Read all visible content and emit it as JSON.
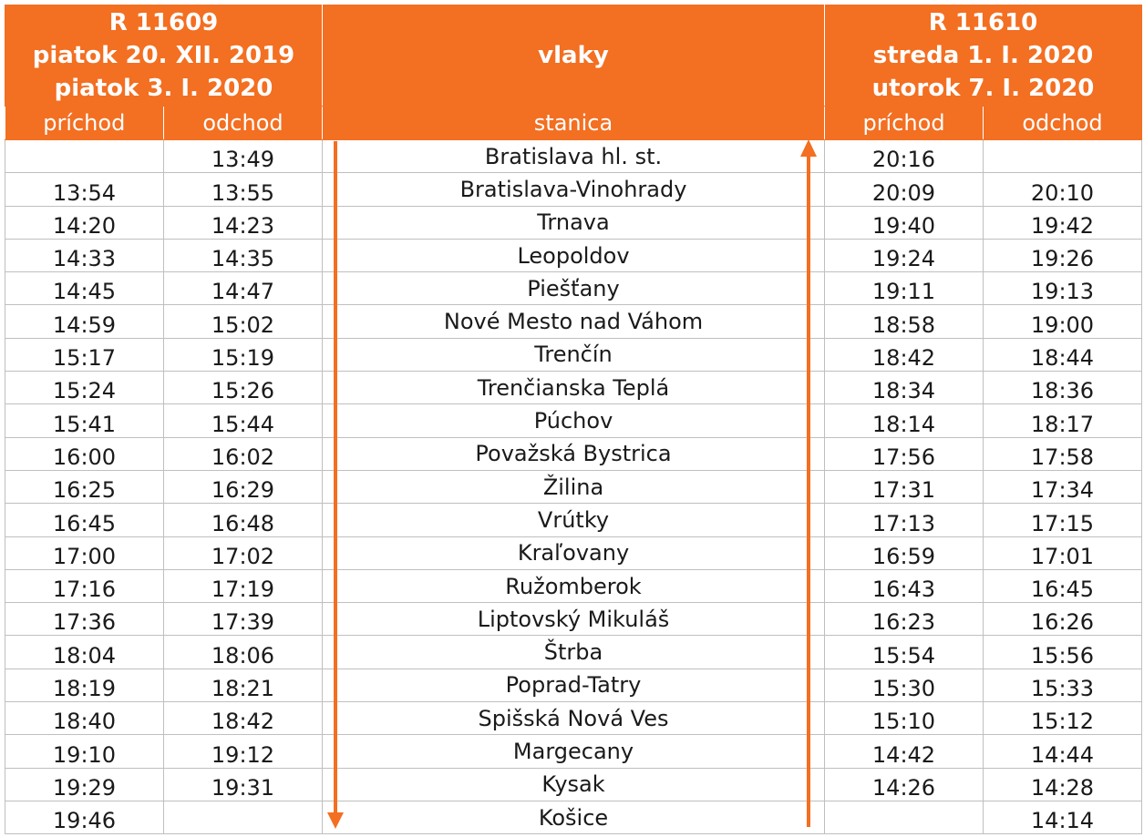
{
  "header": {
    "left_train": {
      "lines": [
        "R 11609",
        "piatok 20. XII. 2019",
        "piatok 3. I. 2020"
      ]
    },
    "middle": "vlaky",
    "right_train": {
      "lines": [
        "R 11610",
        "streda 1. I. 2020",
        "utorok 7. I. 2020"
      ]
    },
    "subheaders": [
      "príchod",
      "odchod",
      "stanica",
      "príchod",
      "odchod"
    ]
  },
  "rows": [
    {
      "arr1": "",
      "dep1": "13:49",
      "station": "Bratislava hl. st.",
      "arr2": "20:16",
      "dep2": ""
    },
    {
      "arr1": "13:54",
      "dep1": "13:55",
      "station": "Bratislava-Vinohrady",
      "arr2": "20:09",
      "dep2": "20:10"
    },
    {
      "arr1": "14:20",
      "dep1": "14:23",
      "station": "Trnava",
      "arr2": "19:40",
      "dep2": "19:42"
    },
    {
      "arr1": "14:33",
      "dep1": "14:35",
      "station": "Leopoldov",
      "arr2": "19:24",
      "dep2": "19:26"
    },
    {
      "arr1": "14:45",
      "dep1": "14:47",
      "station": "Piešťany",
      "arr2": "19:11",
      "dep2": "19:13"
    },
    {
      "arr1": "14:59",
      "dep1": "15:02",
      "station": "Nové Mesto nad Váhom",
      "arr2": "18:58",
      "dep2": "19:00"
    },
    {
      "arr1": "15:17",
      "dep1": "15:19",
      "station": "Trenčín",
      "arr2": "18:42",
      "dep2": "18:44"
    },
    {
      "arr1": "15:24",
      "dep1": "15:26",
      "station": "Trenčianska Teplá",
      "arr2": "18:34",
      "dep2": "18:36"
    },
    {
      "arr1": "15:41",
      "dep1": "15:44",
      "station": "Púchov",
      "arr2": "18:14",
      "dep2": "18:17"
    },
    {
      "arr1": "16:00",
      "dep1": "16:02",
      "station": "Považská Bystrica",
      "arr2": "17:56",
      "dep2": "17:58"
    },
    {
      "arr1": "16:25",
      "dep1": "16:29",
      "station": "Žilina",
      "arr2": "17:31",
      "dep2": "17:34"
    },
    {
      "arr1": "16:45",
      "dep1": "16:48",
      "station": "Vrútky",
      "arr2": "17:13",
      "dep2": "17:15"
    },
    {
      "arr1": "17:00",
      "dep1": "17:02",
      "station": "Kraľovany",
      "arr2": "16:59",
      "dep2": "17:01"
    },
    {
      "arr1": "17:16",
      "dep1": "17:19",
      "station": "Ružomberok",
      "arr2": "16:43",
      "dep2": "16:45"
    },
    {
      "arr1": "17:36",
      "dep1": "17:39",
      "station": "Liptovský Mikuláš",
      "arr2": "16:23",
      "dep2": "16:26"
    },
    {
      "arr1": "18:04",
      "dep1": "18:06",
      "station": "Štrba",
      "arr2": "15:54",
      "dep2": "15:56"
    },
    {
      "arr1": "18:19",
      "dep1": "18:21",
      "station": "Poprad-Tatry",
      "arr2": "15:30",
      "dep2": "15:33"
    },
    {
      "arr1": "18:40",
      "dep1": "18:42",
      "station": "Spišská Nová Ves",
      "arr2": "15:10",
      "dep2": "15:12"
    },
    {
      "arr1": "19:10",
      "dep1": "19:12",
      "station": "Margecany",
      "arr2": "14:42",
      "dep2": "14:44"
    },
    {
      "arr1": "19:29",
      "dep1": "19:31",
      "station": "Kysak",
      "arr2": "14:26",
      "dep2": "14:28"
    },
    {
      "arr1": "19:46",
      "dep1": "",
      "station": "Košice",
      "arr2": "",
      "dep2": "14:14"
    }
  ],
  "direction_arrows": [
    {
      "name": "down",
      "direction": "down"
    },
    {
      "name": "up",
      "direction": "up"
    }
  ],
  "colors": {
    "accent": "#f36f21",
    "header_text": "#ffffff",
    "grid": "#bfbfbf"
  }
}
